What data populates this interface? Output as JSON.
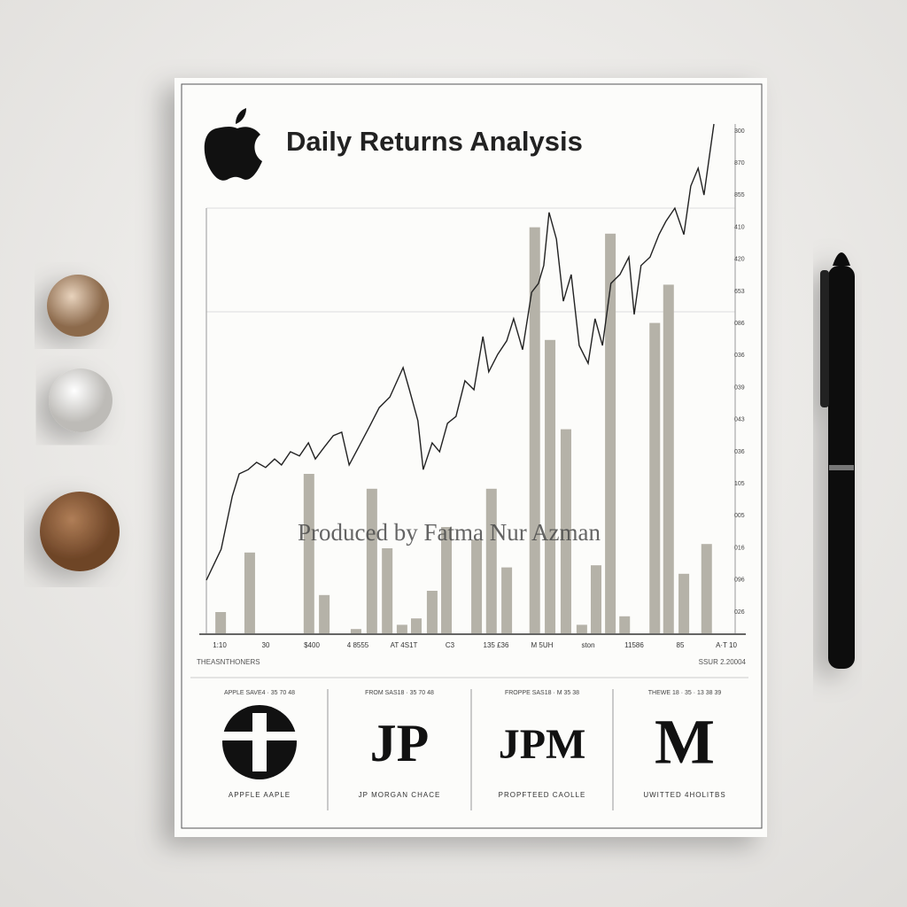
{
  "chart_data": {
    "type": "bar-line",
    "title": "Daily Returns Analysis",
    "watermark": "Produced by Fatma Nur Azman",
    "xlim": [
      0,
      100
    ],
    "ylim": [
      0,
      120
    ],
    "bars": {
      "color": "#b5b2a8",
      "x": [
        2.7,
        8.2,
        19.4,
        22.3,
        28.3,
        31.3,
        34.2,
        37,
        39.7,
        42.7,
        45.4,
        51.1,
        53.9,
        56.8,
        62.1,
        65,
        68,
        71,
        73.7,
        76.4,
        79.1,
        84.8,
        87.4,
        90.3,
        94.6
      ],
      "values": [
        5,
        19,
        37.5,
        9,
        1,
        34,
        20,
        2,
        3.5,
        10,
        25,
        22,
        34,
        15.5,
        95.5,
        69,
        48,
        2,
        16,
        94,
        4,
        73,
        82,
        14,
        21
      ]
    },
    "line": {
      "color": "#222222",
      "x": [
        0,
        2.8,
        4.9,
        6.2,
        7.9,
        9.5,
        11.2,
        12.9,
        14.2,
        15.9,
        17.6,
        19.3,
        20.6,
        22.3,
        24,
        25.6,
        27,
        28.8,
        31,
        32.7,
        34.7,
        37.2,
        38.4,
        40,
        41,
        42.7,
        44.1,
        45.6,
        47.2,
        48.9,
        50.6,
        52.3,
        53.4,
        55.1,
        56.8,
        58.1,
        59.8,
        61.5,
        62.8,
        63.8,
        64.8,
        66.2,
        67.5,
        69,
        70.5,
        72.2,
        73.5,
        74.9,
        76.5,
        78.2,
        79.9,
        80.9,
        82.2,
        83.9,
        85.6,
        86.9,
        88.6,
        90.3,
        91.6,
        93,
        94.1,
        95.98
      ],
      "values": [
        12.5,
        19.8,
        32.3,
        37.5,
        38.5,
        40.2,
        39,
        41,
        39.6,
        42.7,
        41.7,
        44.8,
        41,
        43.8,
        46.5,
        47.3,
        39.6,
        43.8,
        49,
        53.1,
        55.6,
        62.5,
        57.3,
        50,
        38.5,
        44.8,
        42.7,
        49.4,
        51,
        59.4,
        57.3,
        69.8,
        61.5,
        65.6,
        68.8,
        74,
        66.7,
        80.2,
        82.3,
        86.5,
        99,
        92.7,
        78.1,
        84.4,
        67.7,
        63.5,
        74,
        67.7,
        82.3,
        84.4,
        88.5,
        75,
        86.5,
        88.5,
        93.8,
        96.9,
        100,
        93.8,
        105.2,
        109.4,
        103.1,
        119.8
      ]
    },
    "x_labels": [
      "1:10",
      "30",
      "$400",
      "4 8555",
      "AT 4S1T",
      "C3",
      "135 £36",
      "M 5UH",
      "ston",
      "11586",
      "85",
      "A·T 10"
    ],
    "right_labels": [
      "300",
      "870",
      "855",
      "410",
      "420",
      "653",
      "086",
      "036",
      "039",
      "043",
      "036",
      "105",
      "005",
      "016",
      "096",
      "026"
    ],
    "footer_left": "THEASNTHONERS",
    "footer_right": "SSUR 2.20004"
  },
  "logos": [
    {
      "header": "APPLE SAVE4 · 35 70 48",
      "mark": "",
      "name": "APPFLE  AAPLE"
    },
    {
      "header": "FROM SAS18 · 35 70 48",
      "mark": "JP",
      "name": "JP MORGAN CHACE"
    },
    {
      "header": "FROPPE SAS18 · M 35 38",
      "mark": "JPM",
      "name": "PROPFTEED CAOLLE"
    },
    {
      "header": "THEWE 18 · 35 · 13 38 39",
      "mark": "M",
      "name": "UWITTED 4HOLITBS"
    }
  ]
}
